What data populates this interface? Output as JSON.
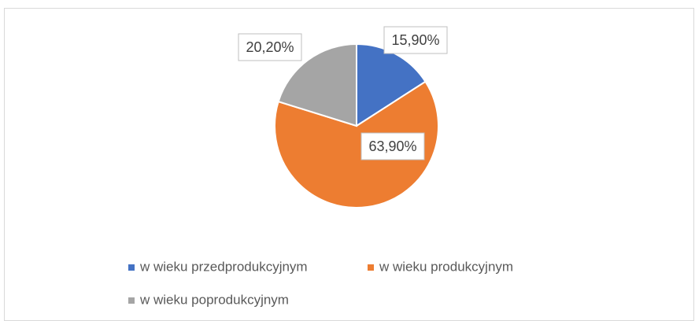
{
  "chart_data": {
    "type": "pie",
    "categories": [
      "w wieku przedprodukcyjnym",
      "w wieku produkcyjnym",
      "w wieku poprodukcyjnym"
    ],
    "values": [
      15.9,
      63.9,
      20.2
    ],
    "value_labels": [
      "15,90%",
      "63,90%",
      "20,20%"
    ],
    "colors": [
      "#4472c4",
      "#ed7d31",
      "#a5a5a5"
    ],
    "legend": "bottom"
  }
}
